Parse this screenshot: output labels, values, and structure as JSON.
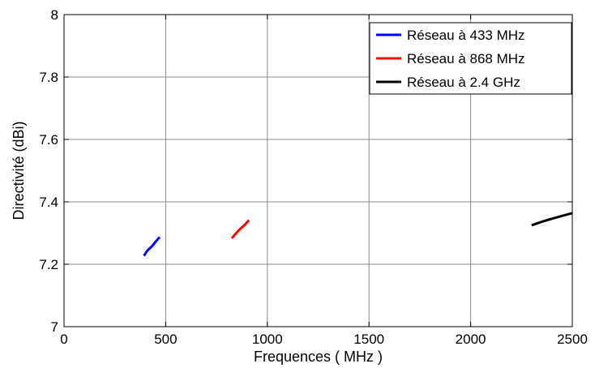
{
  "chart_data": {
    "type": "line",
    "xlabel": "Frequences ( MHz )",
    "ylabel": "Directivité (dBi)",
    "xlim": [
      0,
      2500
    ],
    "ylim": [
      7,
      8
    ],
    "xticks": [
      0,
      500,
      1000,
      1500,
      2000,
      2500
    ],
    "yticks": [
      7,
      7.2,
      7.4,
      7.6,
      7.8,
      8
    ],
    "xtick_labels": [
      "0",
      "500",
      "1000",
      "1500",
      "2000",
      "2500"
    ],
    "ytick_labels": [
      "7",
      "7.2",
      "7.4",
      "7.6",
      "7.8",
      "8"
    ],
    "grid": true,
    "legend_position": "top-right",
    "series": [
      {
        "name": "Réseau à 433 MHz",
        "color": "#0000ff",
        "x": [
          393,
          410,
          433,
          450,
          470
        ],
        "y": [
          7.227,
          7.244,
          7.258,
          7.272,
          7.287
        ]
      },
      {
        "name": "Réseau à 868 MHz",
        "color": "#ff0000",
        "x": [
          825,
          850,
          868,
          890,
          910
        ],
        "y": [
          7.283,
          7.302,
          7.314,
          7.327,
          7.341
        ]
      },
      {
        "name": "Réseau à 2.4 GHz",
        "color": "#000000",
        "x": [
          2300,
          2350,
          2400,
          2450,
          2500
        ],
        "y": [
          7.325,
          7.336,
          7.346,
          7.355,
          7.364
        ]
      }
    ]
  }
}
